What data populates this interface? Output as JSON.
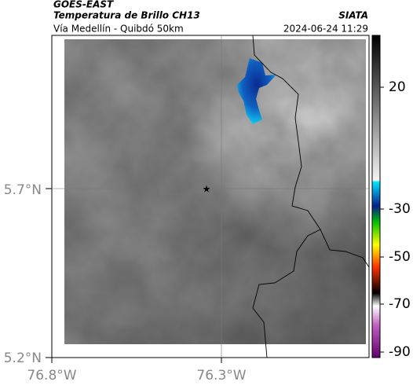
{
  "header": {
    "satellite": "GOES-EAST",
    "product": "Temperatura de Brillo CH13",
    "region": "Vía Medellín - Quibdó 50km",
    "source": "SIATA",
    "timestamp": "2024-06-24 11:29"
  },
  "axes": {
    "lat_labels": [
      "5.7°N",
      "5.2°N"
    ],
    "lon_labels": [
      "76.8°W",
      "76.3°W"
    ]
  },
  "colorbar": {
    "labels": [
      "20",
      "-30",
      "-50",
      "-70",
      "-90"
    ]
  }
}
